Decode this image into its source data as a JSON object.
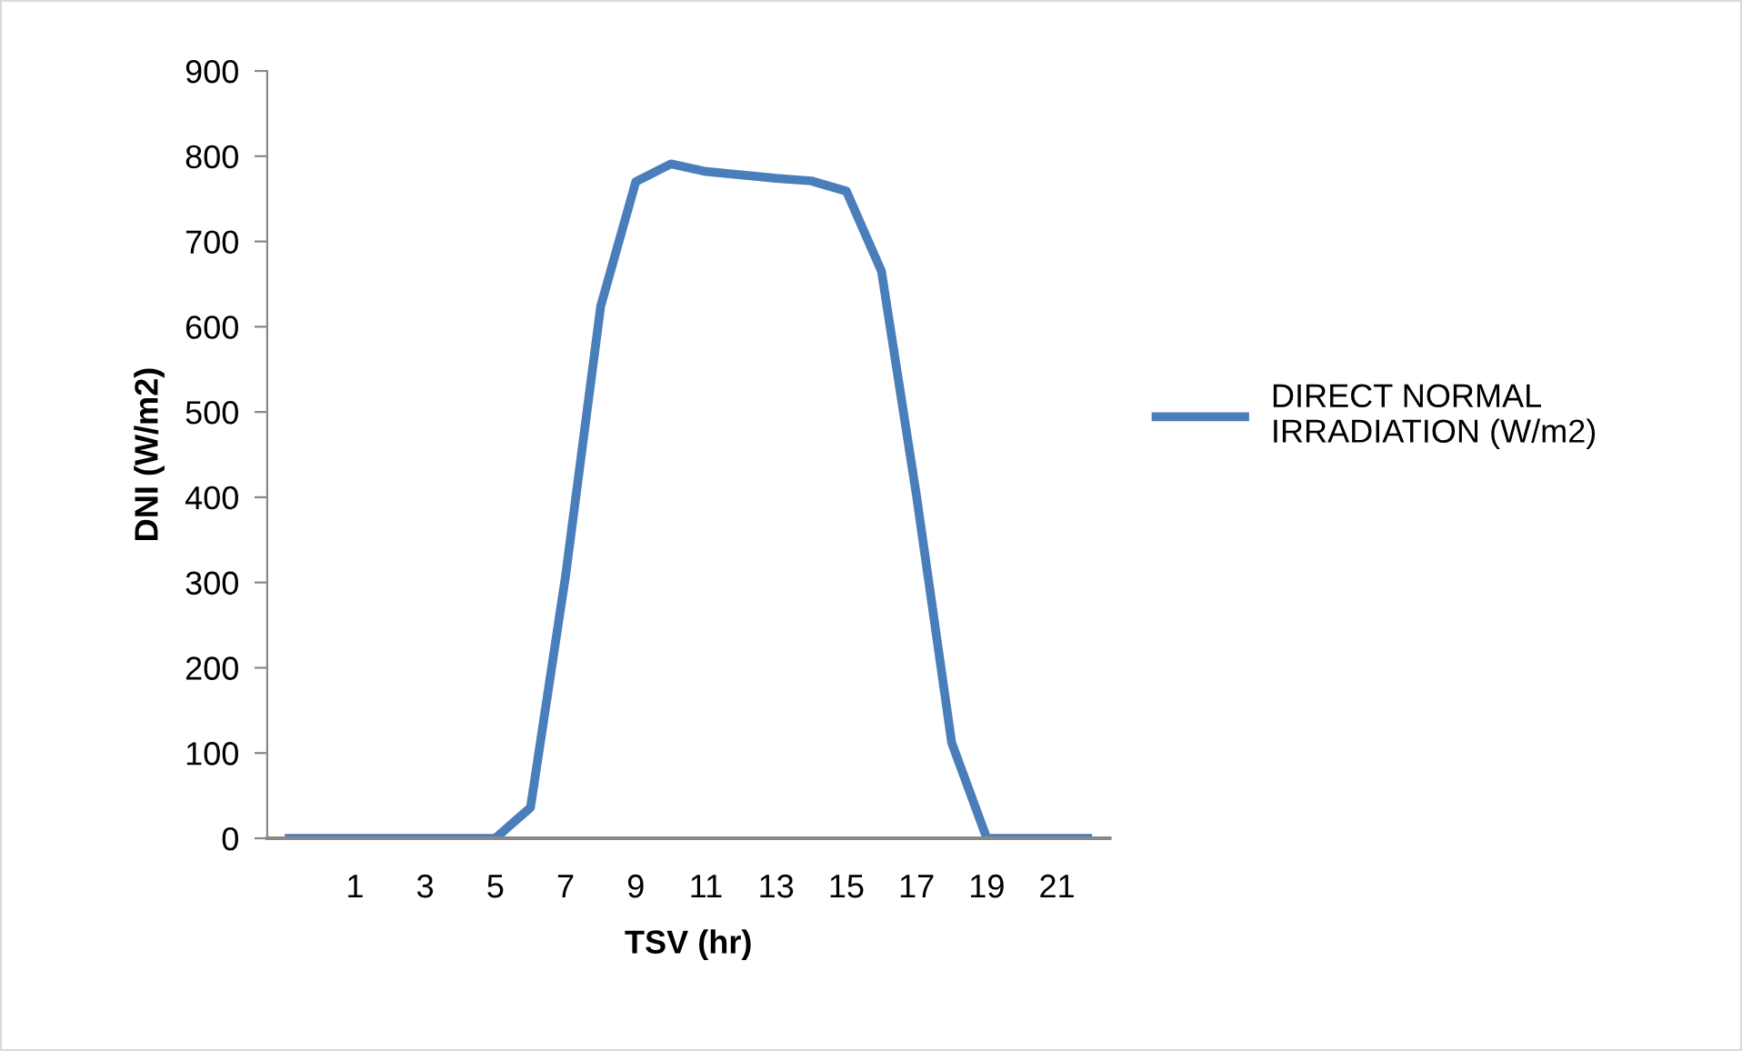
{
  "chart_data": {
    "type": "line",
    "xlabel": "TSV (hr)",
    "ylabel": "DNI (W/m2)",
    "categories": [
      null,
      null,
      "1",
      null,
      "3",
      null,
      "5",
      null,
      "7",
      null,
      "9",
      null,
      "11",
      null,
      "13",
      null,
      "15",
      null,
      "17",
      null,
      "19",
      null,
      "21",
      null
    ],
    "series": [
      {
        "name": "DIRECT NORMAL\nIRRADIATION (W/m2)",
        "color": "#4a7ebb",
        "values": [
          0,
          0,
          0,
          0,
          0,
          0,
          0,
          36,
          308,
          624,
          770,
          791,
          782,
          778,
          774,
          771,
          759,
          665,
          401,
          112,
          0,
          0,
          0,
          0
        ]
      }
    ],
    "ylim": [
      0,
      900
    ],
    "yticks": [
      0,
      100,
      200,
      300,
      400,
      500,
      600,
      700,
      800,
      900
    ],
    "grid": false,
    "legend": "right",
    "marker": "none",
    "line_style": "solid"
  }
}
